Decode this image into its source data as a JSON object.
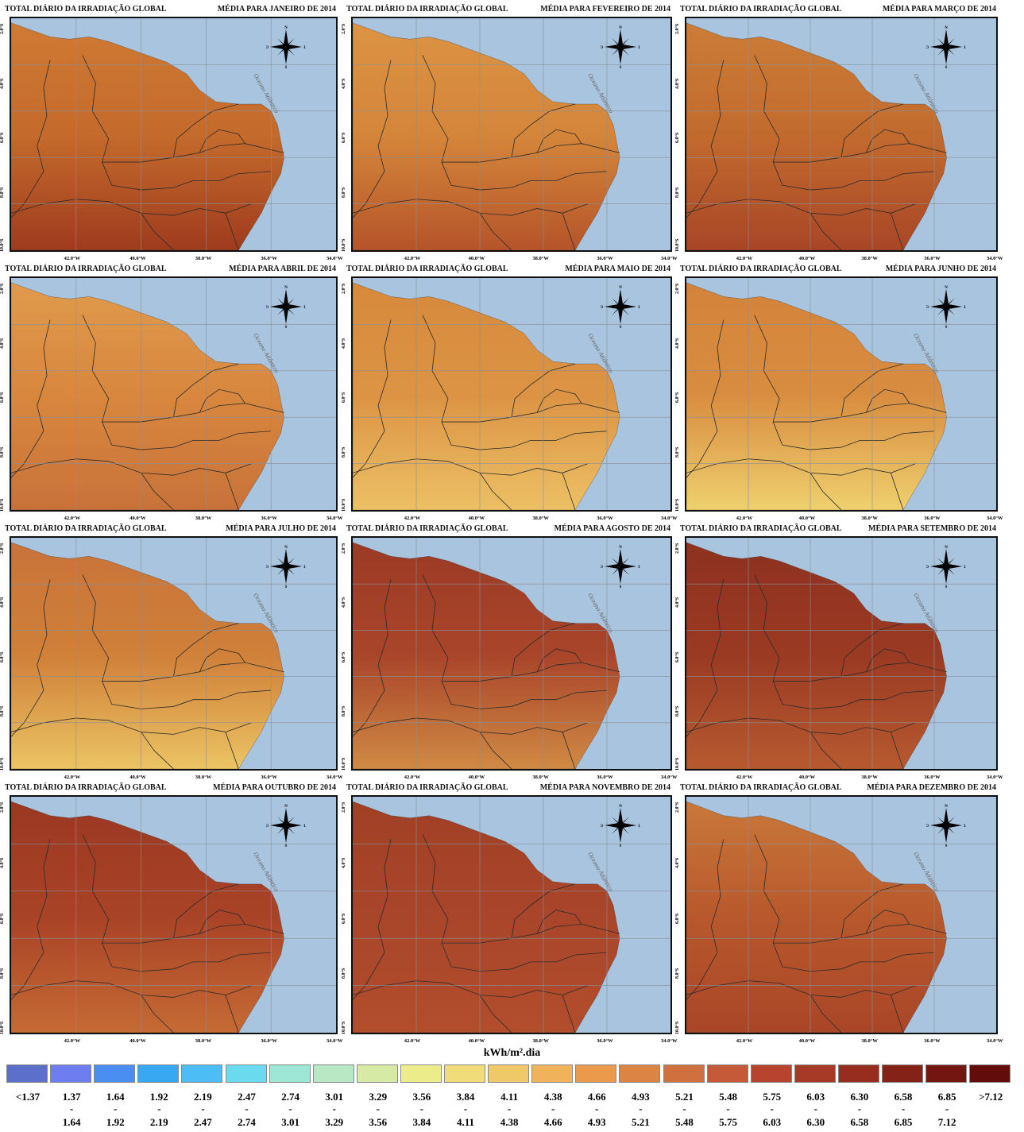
{
  "panel_title": "TOTAL DIÁRIO DA IRRADIAÇÃO GLOBAL",
  "ocean_label": "Oceano Atlântico",
  "lat_labels": [
    "2.0°S",
    "4.0°S",
    "6.0°S",
    "8.0°S",
    "10.0°S"
  ],
  "lon_labels": [
    "42.0°W",
    "40.0°W",
    "38.0°W",
    "36.0°W",
    "34.0°W"
  ],
  "compass": {
    "n": "N",
    "s": "S",
    "e": "L",
    "w": "O",
    "icon": "compass-rose-icon"
  },
  "panels": [
    {
      "month_title": "MÉDIA PARA JANEIRO DE 2014",
      "base": "#c46a2c",
      "north": "#cf7a34",
      "south": "#9e3b1e"
    },
    {
      "month_title": "MÉDIA PARA FEVEREIRO DE 2014",
      "base": "#d4853a",
      "north": "#dc9343",
      "south": "#b5542a"
    },
    {
      "month_title": "MÉDIA PARA MARÇO DE 2014",
      "base": "#c26a2e",
      "north": "#cc7d37",
      "south": "#a84627"
    },
    {
      "month_title": "MÉDIA PARA ABRIL DE 2014",
      "base": "#d8873e",
      "north": "#e09a4c",
      "south": "#c8723a"
    },
    {
      "month_title": "MÉDIA PARA MAIO DE 2014",
      "base": "#dc9444",
      "north": "#d7893c",
      "south": "#ecc065"
    },
    {
      "month_title": "MÉDIA PARA JUNHO DE 2014",
      "base": "#d98d40",
      "north": "#d3833a",
      "south": "#eed06e"
    },
    {
      "month_title": "MÉDIA PARA JULHO DE 2014",
      "base": "#d08039",
      "north": "#c8733a",
      "south": "#ebc464"
    },
    {
      "month_title": "MÉDIA PARA AGOSTO DE 2014",
      "base": "#a9452a",
      "north": "#9b3a25",
      "south": "#d08a44"
    },
    {
      "month_title": "MÉDIA PARA SETEMBRO DE 2014",
      "base": "#9b3a23",
      "north": "#8e3120",
      "south": "#b75a30"
    },
    {
      "month_title": "MÉDIA PARA OUTUBRO DE 2014",
      "base": "#a94327",
      "north": "#9b3822",
      "south": "#c56a34"
    },
    {
      "month_title": "MÉDIA PARA NOVEMBRO DE 2014",
      "base": "#a9452a",
      "north": "#a14026",
      "south": "#b24e2c"
    },
    {
      "month_title": "MÉDIA PARA DEZEMBRO DE 2014",
      "base": "#b8582c",
      "north": "#c9783a",
      "south": "#a94628"
    }
  ],
  "legend": {
    "title": "kWh/m².dia",
    "items": [
      {
        "low": "<1.37",
        "dash": "",
        "high": "",
        "color": "#5b6fcb"
      },
      {
        "low": "1.37",
        "dash": "-",
        "high": "1.64",
        "color": "#6e7df0"
      },
      {
        "low": "1.64",
        "dash": "-",
        "high": "1.92",
        "color": "#4a8ef2"
      },
      {
        "low": "1.92",
        "dash": "-",
        "high": "2.19",
        "color": "#38a8f2"
      },
      {
        "low": "2.19",
        "dash": "-",
        "high": "2.47",
        "color": "#4cbdf5"
      },
      {
        "low": "2.47",
        "dash": "-",
        "high": "2.74",
        "color": "#6adbef"
      },
      {
        "low": "2.74",
        "dash": "-",
        "high": "3.01",
        "color": "#9ee6d6"
      },
      {
        "low": "3.01",
        "dash": "-",
        "high": "3.29",
        "color": "#b8e8c4"
      },
      {
        "low": "3.29",
        "dash": "-",
        "high": "3.56",
        "color": "#d6eaa6"
      },
      {
        "low": "3.56",
        "dash": "-",
        "high": "3.84",
        "color": "#ecec8a"
      },
      {
        "low": "3.84",
        "dash": "-",
        "high": "4.11",
        "color": "#f0dc78"
      },
      {
        "low": "4.11",
        "dash": "-",
        "high": "4.38",
        "color": "#efc868"
      },
      {
        "low": "4.38",
        "dash": "-",
        "high": "4.66",
        "color": "#f0b25a"
      },
      {
        "low": "4.66",
        "dash": "-",
        "high": "4.93",
        "color": "#ea9a4a"
      },
      {
        "low": "4.93",
        "dash": "-",
        "high": "5.21",
        "color": "#dc8444"
      },
      {
        "low": "5.21",
        "dash": "-",
        "high": "5.48",
        "color": "#d0703e"
      },
      {
        "low": "5.48",
        "dash": "-",
        "high": "5.75",
        "color": "#c45a37"
      },
      {
        "low": "5.75",
        "dash": "-",
        "high": "6.03",
        "color": "#b8442f"
      },
      {
        "low": "6.03",
        "dash": "-",
        "high": "6.30",
        "color": "#a73a26"
      },
      {
        "low": "6.30",
        "dash": "-",
        "high": "6.58",
        "color": "#972d1f"
      },
      {
        "low": "6.58",
        "dash": "-",
        "high": "6.85",
        "color": "#852218"
      },
      {
        "low": "6.85",
        "dash": "-",
        "high": "7.12",
        "color": "#731612"
      },
      {
        "low": ">7.12",
        "dash": "",
        "high": "",
        "color": "#620d0b"
      }
    ]
  }
}
